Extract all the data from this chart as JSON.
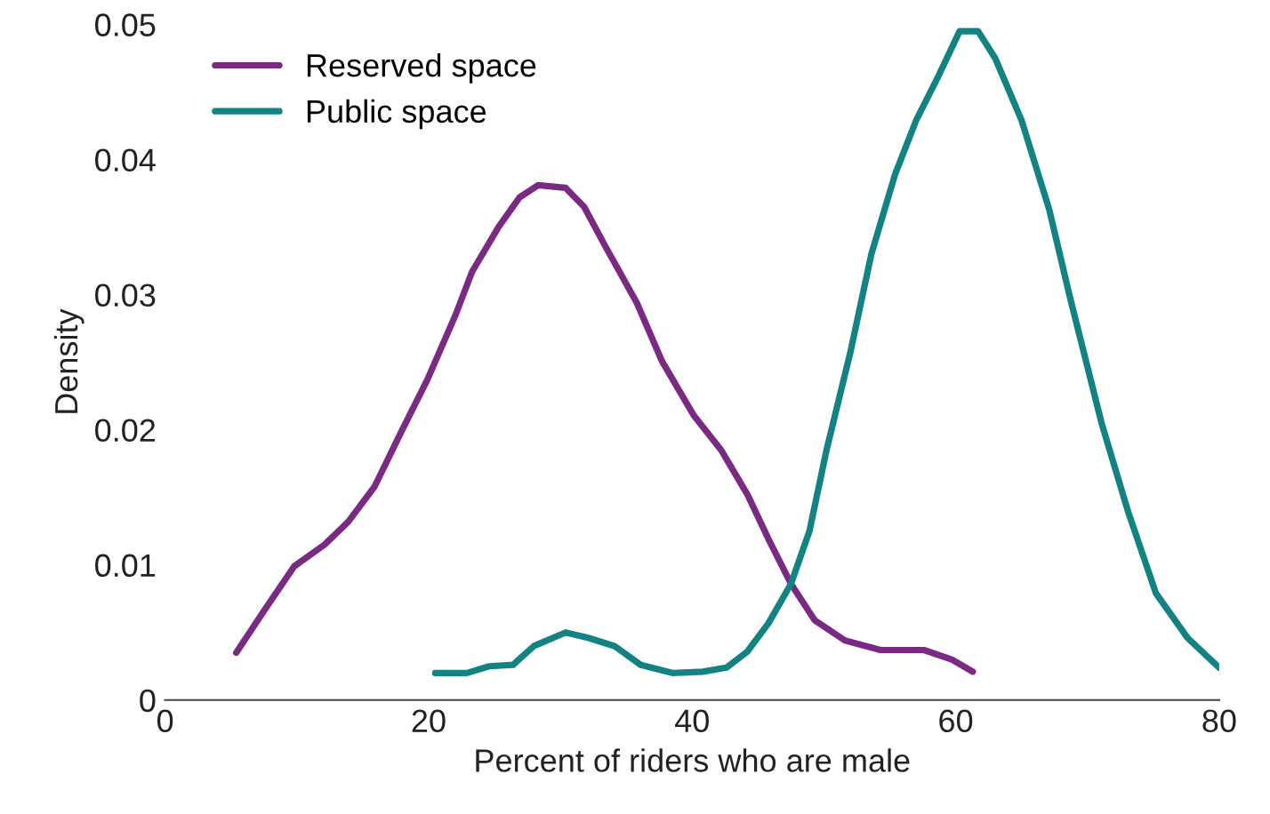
{
  "chart_data": {
    "type": "line",
    "xlabel": "Percent of riders who are male",
    "ylabel": "Density",
    "xlim": [
      0,
      80
    ],
    "xticks": [
      0,
      20,
      40,
      60,
      80
    ],
    "ylim": [
      0,
      0.05
    ],
    "yticks": [
      0,
      0.01,
      0.02,
      0.03,
      0.04,
      0.05
    ],
    "grid": false,
    "legend": "top left",
    "marker": "none",
    "line_style": "solid",
    "series": [
      {
        "name": "Reserved space",
        "color": "#7b2a83",
        "x": [
          5.4,
          7.5,
          9.8,
          12.1,
          13.9,
          15.9,
          17.9,
          19.9,
          22.0,
          23.3,
          25.3,
          26.9,
          28.3,
          30.4,
          31.8,
          33.4,
          35.8,
          37.7,
          40.1,
          42.2,
          44.2,
          45.8,
          47.5,
          49.3,
          51.6,
          54.3,
          57.6,
          59.7,
          61.3
        ],
        "values": [
          0.0035,
          0.0066,
          0.0099,
          0.0115,
          0.0132,
          0.0158,
          0.0198,
          0.0237,
          0.0284,
          0.0317,
          0.035,
          0.0372,
          0.0381,
          0.0379,
          0.0365,
          0.0336,
          0.0294,
          0.0251,
          0.0211,
          0.0185,
          0.0152,
          0.0119,
          0.0086,
          0.0059,
          0.0044,
          0.0037,
          0.0037,
          0.003,
          0.0021
        ]
      },
      {
        "name": "Public space",
        "color": "#128282",
        "x": [
          20.5,
          22.9,
          24.6,
          26.4,
          28.0,
          30.4,
          32.1,
          34.1,
          36.1,
          38.5,
          40.8,
          42.6,
          44.2,
          45.8,
          47.5,
          48.9,
          50.2,
          52.0,
          53.6,
          55.4,
          57.0,
          58.7,
          60.3,
          61.7,
          63.0,
          65.0,
          67.1,
          68.7,
          71.1,
          73.1,
          75.2,
          77.6,
          80.0
        ],
        "values": [
          0.002,
          0.002,
          0.0025,
          0.0026,
          0.004,
          0.005,
          0.0046,
          0.004,
          0.0026,
          0.002,
          0.0021,
          0.0024,
          0.0036,
          0.0057,
          0.0086,
          0.0125,
          0.0185,
          0.0257,
          0.033,
          0.0389,
          0.0429,
          0.0462,
          0.0495,
          0.0495,
          0.0475,
          0.0429,
          0.0363,
          0.0297,
          0.0204,
          0.0139,
          0.0079,
          0.0046,
          0.0024
        ]
      }
    ]
  }
}
